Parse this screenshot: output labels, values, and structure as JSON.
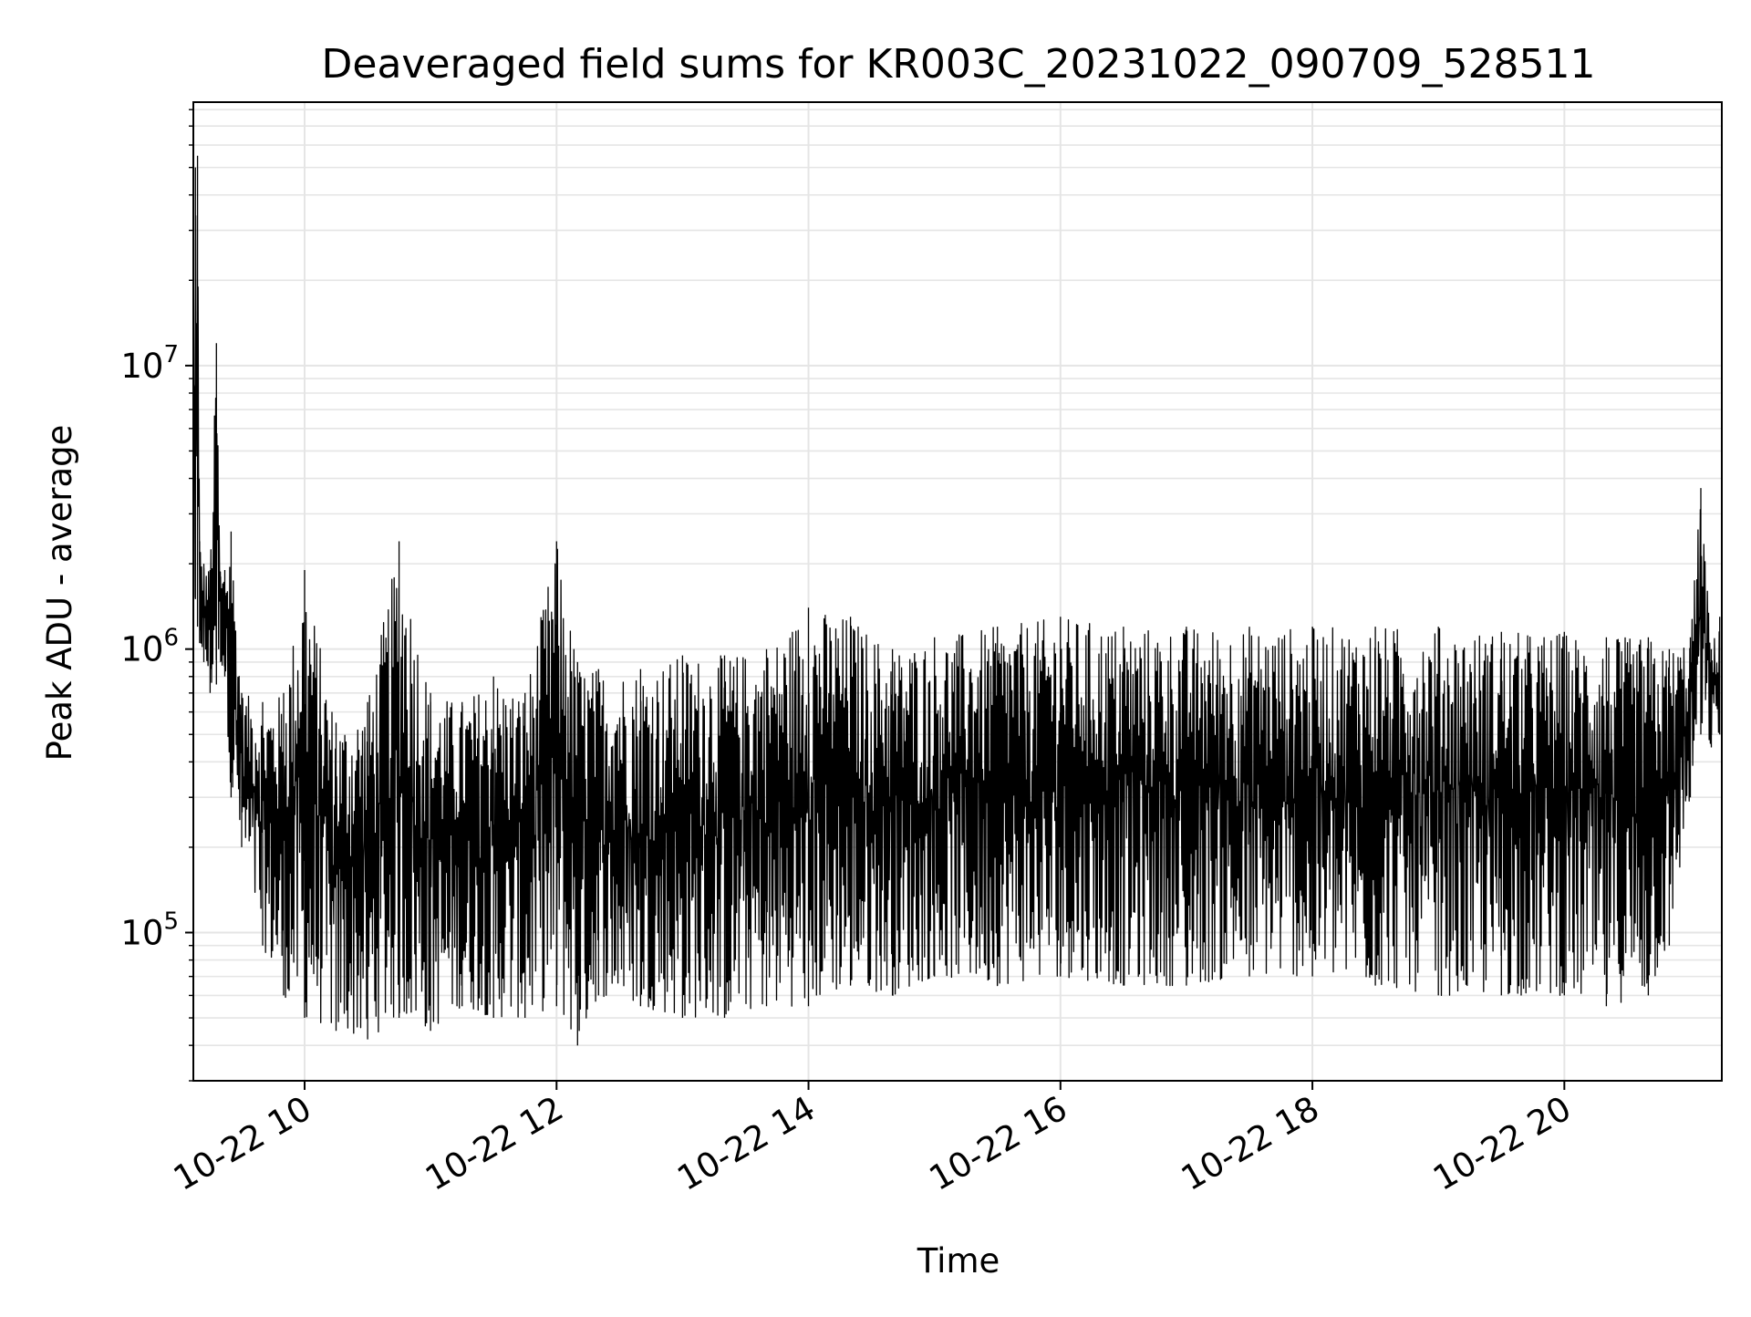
{
  "chart_data": {
    "type": "line",
    "title": "Deaveraged field sums for KR003C_20231022_090709_528511",
    "xlabel": "Time",
    "ylabel": "Peak ADU - average",
    "x_scale": "time",
    "y_scale": "log",
    "xlim": [
      "2023-10-22 09:07",
      "2023-10-22 21:15"
    ],
    "ylim": [
      30000,
      85000000
    ],
    "grid": true,
    "x_ticks": [
      "10-22 10",
      "10-22 12",
      "10-22 14",
      "10-22 16",
      "10-22 18",
      "10-22 20"
    ],
    "y_ticks": [
      {
        "base": "10",
        "exp": "5",
        "value": 100000
      },
      {
        "base": "10",
        "exp": "6",
        "value": 1000000
      },
      {
        "base": "10",
        "exp": "7",
        "value": 10000000
      }
    ],
    "colors": {
      "line": "#000000",
      "grid": "#e5e5e5",
      "axes": "#000000"
    },
    "series": [
      {
        "x": [
          "2023-10-22 09:07",
          "2023-10-22 09:08",
          "2023-10-22 09:09",
          "2023-10-22 09:10",
          "2023-10-22 09:12",
          "2023-10-22 09:15",
          "2023-10-22 09:18",
          "2023-10-22 09:20",
          "2023-10-22 09:22",
          "2023-10-22 09:25",
          "2023-10-22 09:30",
          "2023-10-22 09:40",
          "2023-10-22 09:50",
          "2023-10-22 10:00",
          "2023-10-22 10:15",
          "2023-10-22 10:30",
          "2023-10-22 10:45",
          "2023-10-22 11:00",
          "2023-10-22 11:15",
          "2023-10-22 11:30",
          "2023-10-22 11:45",
          "2023-10-22 12:00",
          "2023-10-22 12:10",
          "2023-10-22 12:20",
          "2023-10-22 12:40",
          "2023-10-22 13:00",
          "2023-10-22 13:20",
          "2023-10-22 13:40",
          "2023-10-22 14:00",
          "2023-10-22 14:20",
          "2023-10-22 14:40",
          "2023-10-22 15:00",
          "2023-10-22 15:30",
          "2023-10-22 16:00",
          "2023-10-22 16:30",
          "2023-10-22 17:00",
          "2023-10-22 17:30",
          "2023-10-22 18:00",
          "2023-10-22 18:30",
          "2023-10-22 19:00",
          "2023-10-22 19:30",
          "2023-10-22 20:00",
          "2023-10-22 20:20",
          "2023-10-22 20:40",
          "2023-10-22 20:50",
          "2023-10-22 21:00",
          "2023-10-22 21:05",
          "2023-10-22 21:10",
          "2023-10-22 21:14"
        ],
        "high": [
          1500000,
          50000000,
          55000000,
          2400000,
          2000000,
          1900000,
          12000000,
          1800000,
          1900000,
          2600000,
          700000,
          650000,
          700000,
          1900000,
          550000,
          650000,
          2400000,
          700000,
          650000,
          800000,
          700000,
          2400000,
          900000,
          850000,
          850000,
          950000,
          950000,
          1000000,
          1400000,
          1300000,
          1000000,
          1100000,
          1200000,
          1300000,
          1200000,
          1200000,
          1200000,
          1200000,
          1200000,
          1200000,
          1150000,
          1150000,
          1100000,
          1100000,
          1000000,
          1100000,
          3700000,
          1000000,
          1300000
        ],
        "low": [
          1300000,
          1500000,
          1200000,
          1050000,
          900000,
          700000,
          750000,
          900000,
          800000,
          300000,
          200000,
          90000,
          60000,
          50000,
          45000,
          42000,
          50000,
          45000,
          55000,
          50000,
          50000,
          55000,
          40000,
          60000,
          55000,
          50000,
          50000,
          55000,
          55000,
          65000,
          60000,
          70000,
          65000,
          70000,
          65000,
          65000,
          70000,
          70000,
          65000,
          60000,
          60000,
          60000,
          55000,
          60000,
          90000,
          300000,
          500000,
          450000,
          500000
        ]
      }
    ]
  }
}
